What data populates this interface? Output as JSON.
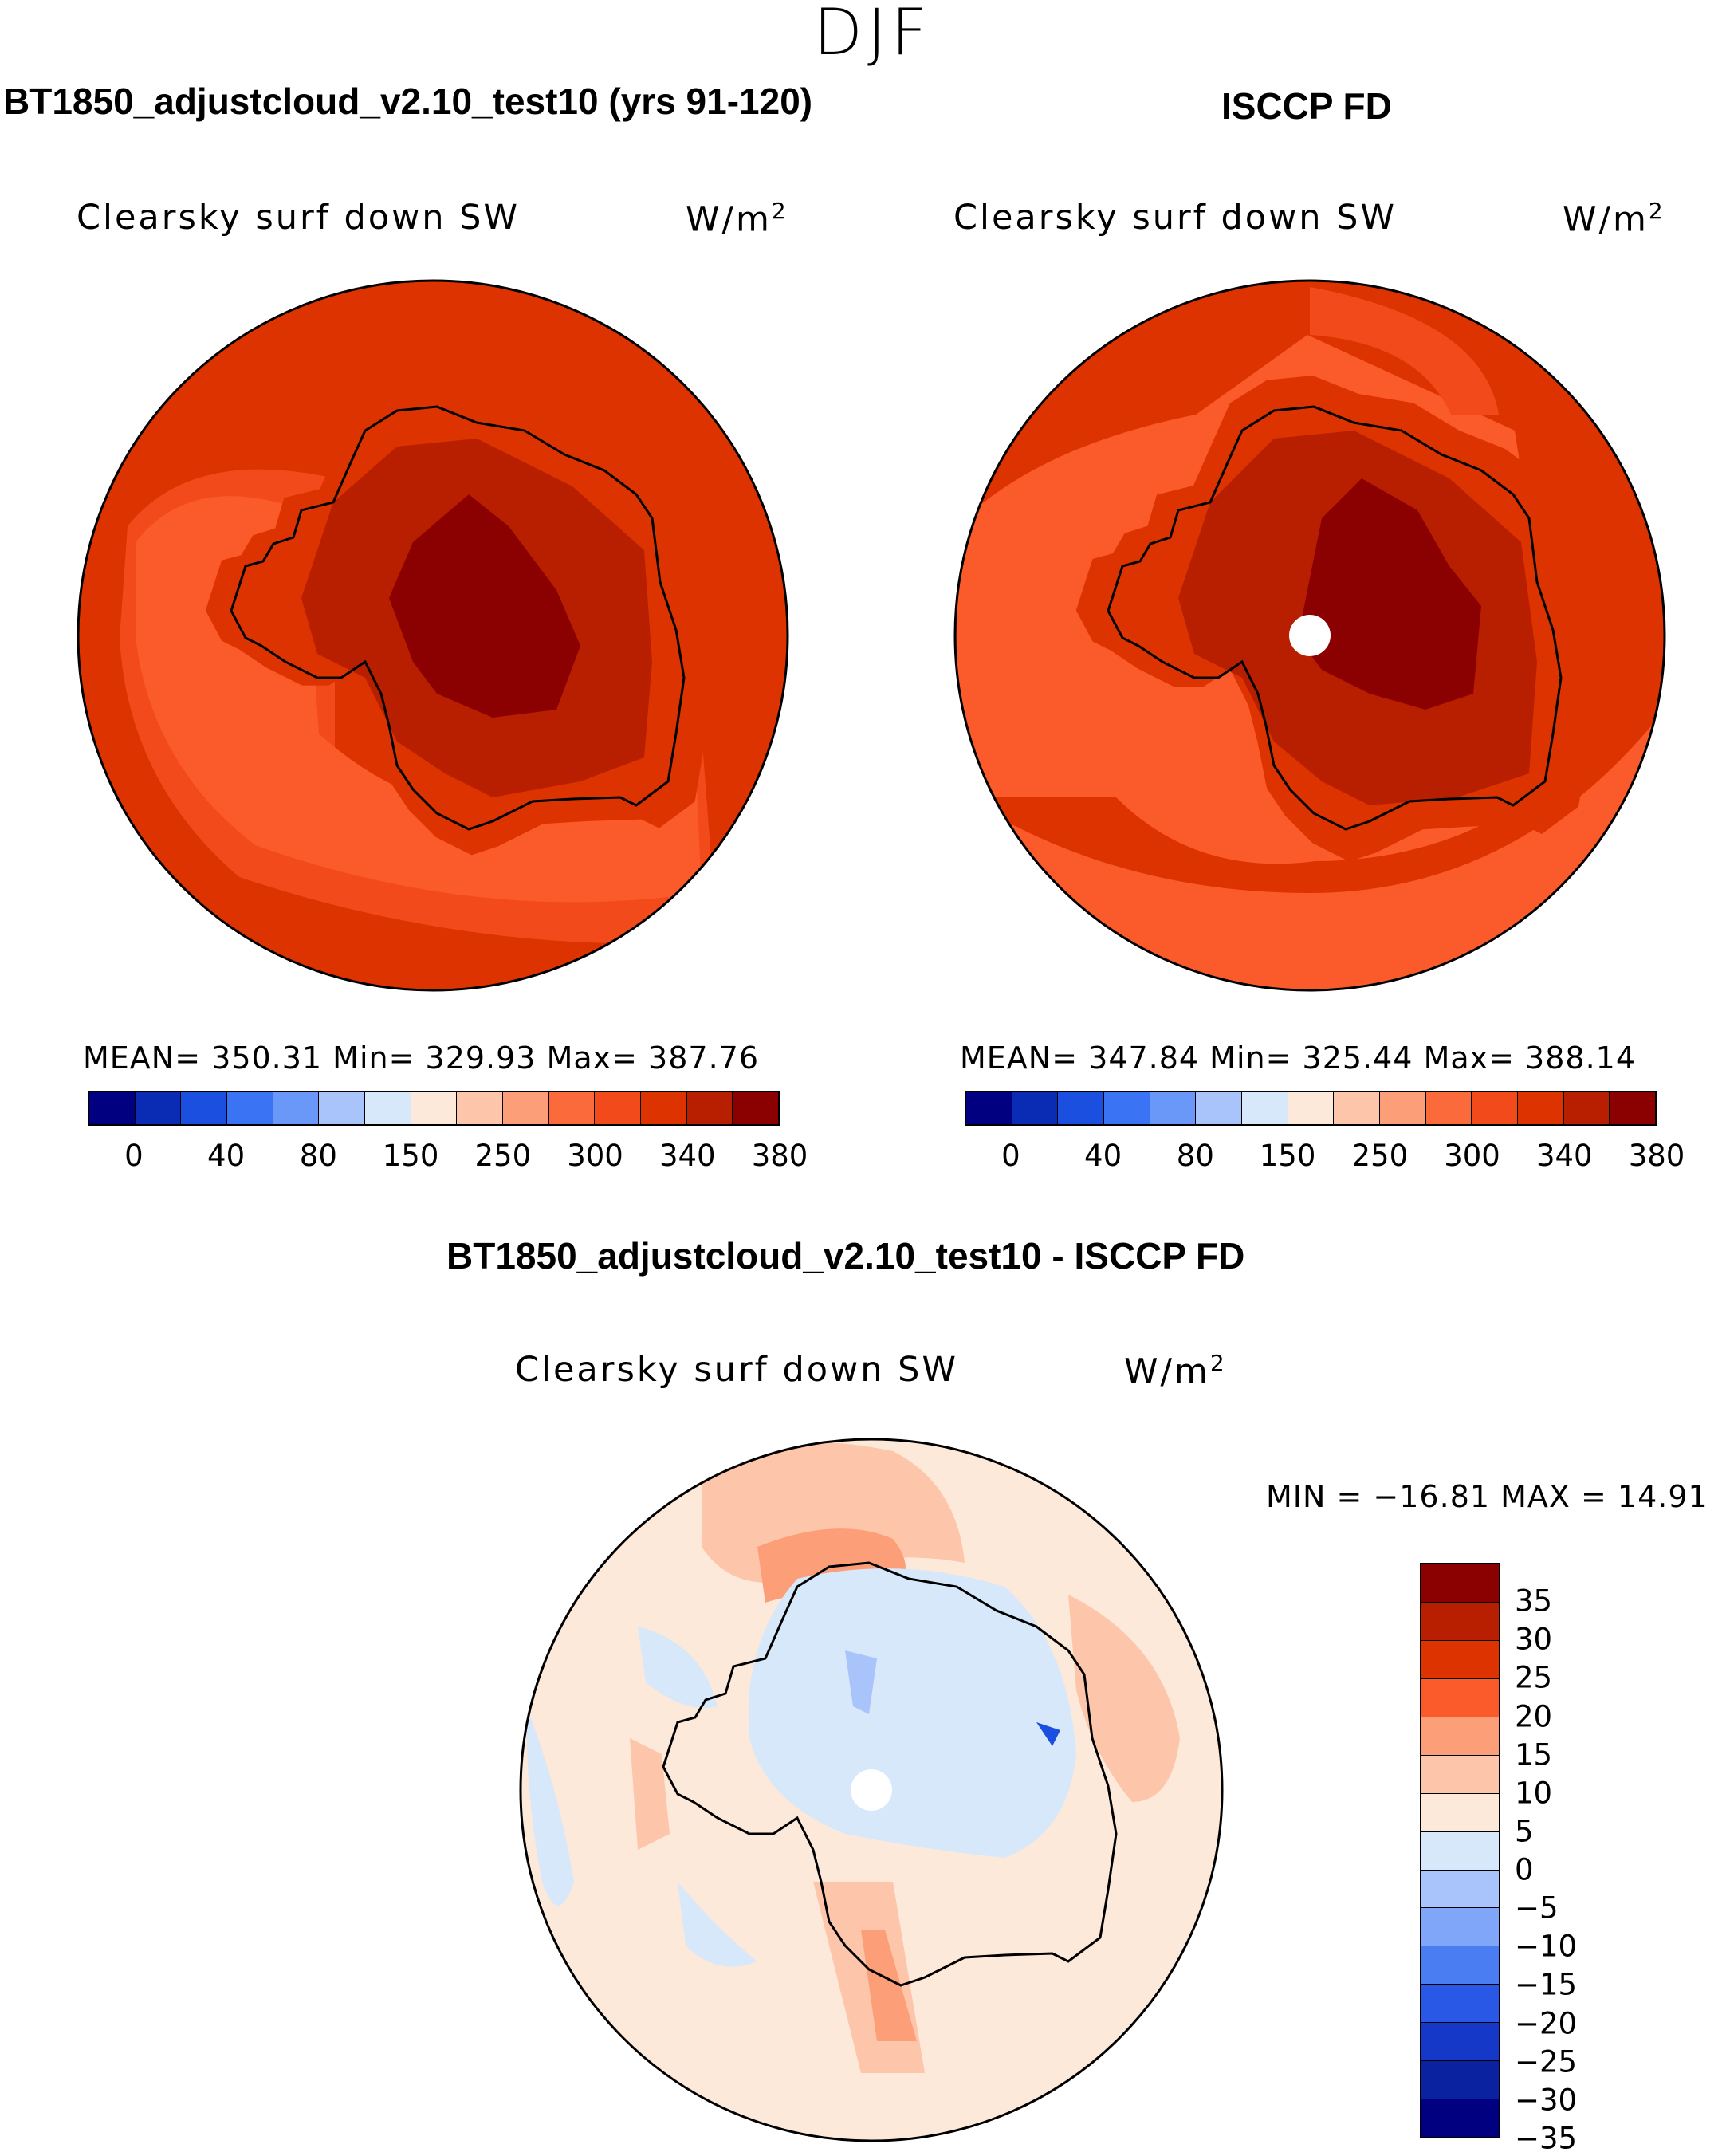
{
  "season": "DJF",
  "left_panel": {
    "title": "BT1850_adjustcloud_v2.10_test10 (yrs 91-120)",
    "variable": "Clearsky surf down SW",
    "units": "W/m",
    "units_exp": "2",
    "stats": "MEAN= 350.31   Min= 329.93   Max= 387.76"
  },
  "right_panel": {
    "title": "ISCCP FD",
    "variable": "Clearsky surf down SW",
    "units": "W/m",
    "units_exp": "2",
    "stats": "MEAN= 347.84   Min= 325.44   Max= 388.14"
  },
  "diff_panel": {
    "title": "BT1850_adjustcloud_v2.10_test10 - ISCCP FD",
    "variable": "Clearsky surf down SW",
    "units": "W/m",
    "units_exp": "2",
    "stats": "MIN = −16.81 MAX =   14.91"
  },
  "colors": {
    "seq": [
      "#000080",
      "#0a2cb4",
      "#1a4fe0",
      "#3a74f5",
      "#6a98f8",
      "#a8c4fa",
      "#d7e8fa",
      "#fde9da",
      "#fdc6aa",
      "#fc9f78",
      "#fb6a3a",
      "#f24a1a",
      "#dd3300",
      "#b81e00",
      "#8b0000"
    ],
    "div": [
      "#8b0000",
      "#b81e00",
      "#dd3300",
      "#fb5a2a",
      "#fc9f78",
      "#fdc6aa",
      "#fde9da",
      "#d7e8fa",
      "#a8c4fa",
      "#7fa6f9",
      "#4a7cf2",
      "#2a58e6",
      "#1538c8",
      "#0a22a0",
      "#000080"
    ],
    "land_outline": "#000000",
    "pole_hole": "#ffffff"
  },
  "chart_data": [
    {
      "type": "heatmap",
      "title": "BT1850_adjustcloud_v2.10_test10 (yrs 91-120)",
      "variable": "Clearsky surf down SW",
      "units": "W/m2",
      "projection": "south polar stereographic",
      "mean": 350.31,
      "min": 329.93,
      "max": 387.76,
      "colorbar_ticks": [
        "0",
        "40",
        "80",
        "150",
        "250",
        "300",
        "340",
        "380"
      ]
    },
    {
      "type": "heatmap",
      "title": "ISCCP FD",
      "variable": "Clearsky surf down SW",
      "units": "W/m2",
      "projection": "south polar stereographic",
      "mean": 347.84,
      "min": 325.44,
      "max": 388.14,
      "colorbar_ticks": [
        "0",
        "40",
        "80",
        "150",
        "250",
        "300",
        "340",
        "380"
      ]
    },
    {
      "type": "heatmap",
      "title": "BT1850_adjustcloud_v2.10_test10 - ISCCP FD",
      "variable": "Clearsky surf down SW",
      "units": "W/m2",
      "projection": "south polar stereographic",
      "min": -16.81,
      "max": 14.91,
      "colorbar_ticks": [
        "35",
        "30",
        "25",
        "20",
        "15",
        "10",
        "5",
        "0",
        "−5",
        "−10",
        "−15",
        "−20",
        "−25",
        "−30",
        "−35"
      ]
    }
  ]
}
